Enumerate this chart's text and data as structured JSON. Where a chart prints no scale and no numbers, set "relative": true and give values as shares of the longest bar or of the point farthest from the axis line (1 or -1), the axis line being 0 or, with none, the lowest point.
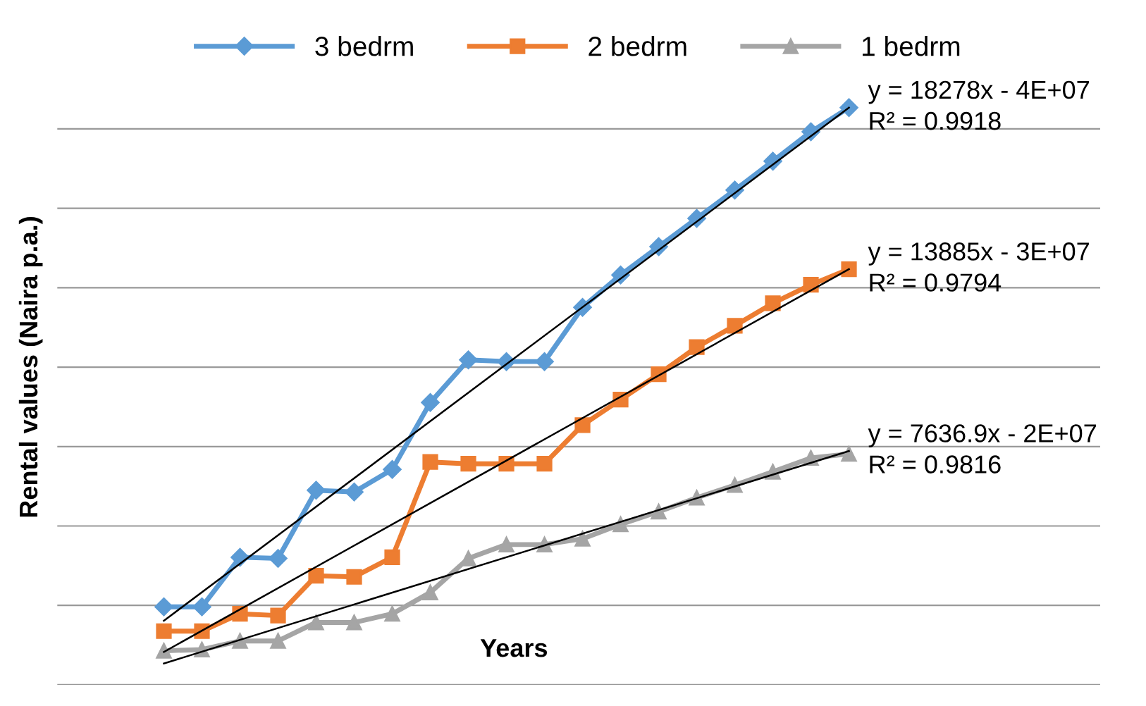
{
  "chart_data": {
    "type": "line",
    "relative": true,
    "xlabel": "Years",
    "ylabel": "Rental values (Naira p.a.)",
    "categories": [
      null,
      null,
      null,
      null,
      null,
      null,
      null,
      null,
      null,
      null,
      null,
      null,
      null,
      null,
      null,
      null,
      null,
      null,
      null
    ],
    "series": [
      {
        "name": "3 bedrm",
        "color": "#5b9bd5",
        "marker": "diamond",
        "values": [
          0.135,
          0.135,
          0.221,
          0.219,
          0.337,
          0.334,
          0.373,
          0.489,
          0.563,
          0.56,
          0.56,
          0.654,
          0.71,
          0.759,
          0.808,
          0.857,
          0.907,
          0.958,
          1.0
        ]
      },
      {
        "name": "2 bedrm",
        "color": "#ed7d31",
        "marker": "square",
        "values": [
          0.093,
          0.093,
          0.123,
          0.12,
          0.189,
          0.187,
          0.221,
          0.386,
          0.383,
          0.383,
          0.383,
          0.45,
          0.494,
          0.538,
          0.585,
          0.622,
          0.661,
          0.693,
          0.72
        ]
      },
      {
        "name": "1 bedrm",
        "color": "#a5a5a5",
        "marker": "triangle",
        "values": [
          0.059,
          0.061,
          0.076,
          0.076,
          0.108,
          0.108,
          0.123,
          0.16,
          0.219,
          0.243,
          0.243,
          0.253,
          0.278,
          0.3,
          0.324,
          0.346,
          0.369,
          0.393,
          0.4
        ]
      },
      {
        "color": "#000000",
        "marker": "none",
        "values": [
          0.111,
          null,
          null,
          null,
          null,
          null,
          null,
          null,
          null,
          null,
          null,
          null,
          null,
          null,
          null,
          null,
          null,
          null,
          1.0
        ]
      },
      {
        "color": "#000000",
        "marker": "none",
        "values": [
          0.057,
          null,
          null,
          null,
          null,
          null,
          null,
          null,
          null,
          null,
          null,
          null,
          null,
          null,
          null,
          null,
          null,
          null,
          0.72
        ]
      },
      {
        "color": "#000000",
        "marker": "none",
        "values": [
          0.037,
          null,
          null,
          null,
          null,
          null,
          null,
          null,
          null,
          null,
          null,
          null,
          null,
          null,
          null,
          null,
          null,
          null,
          0.405
        ]
      }
    ],
    "annotations": [
      "y = 18278x - 4E+07\nR² = 0.9918",
      "y = 13885x - 3E+07\nR² = 0.9794",
      "y = 7636.9x - 2E+07\nR² = 0.9816"
    ],
    "grid": "y",
    "legend": "top",
    "line_style": "solid"
  }
}
